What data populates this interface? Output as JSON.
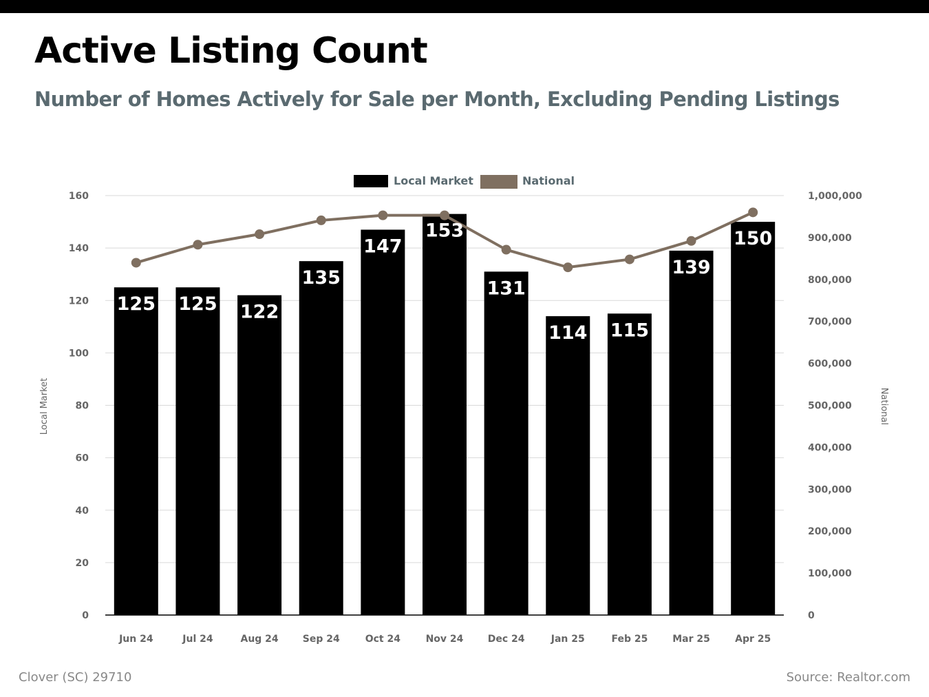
{
  "title": "Active Listing Count",
  "subtitle": "Number of Homes Actively for Sale per Month, Excluding Pending Listings",
  "footer": {
    "location": "Clover (SC) 29710",
    "source": "Source: Realtor.com"
  },
  "colors": {
    "bar": "#000000",
    "line": "#7f6f60",
    "subtitle": "#5a6a70",
    "grid": "#d9d9d9",
    "axis_text": "#666666"
  },
  "chart_data": {
    "type": "bar",
    "categories": [
      "Jun 24",
      "Jul 24",
      "Aug 24",
      "Sep 24",
      "Oct 24",
      "Nov 24",
      "Dec 24",
      "Jan 25",
      "Feb 25",
      "Mar 25",
      "Apr 25"
    ],
    "series": [
      {
        "name": "Local Market",
        "type": "bar",
        "axis": "left",
        "values": [
          125,
          125,
          122,
          135,
          147,
          153,
          131,
          114,
          115,
          139,
          150
        ]
      },
      {
        "name": "National",
        "type": "line",
        "axis": "right",
        "values": [
          840000,
          883000,
          908000,
          941000,
          953000,
          953000,
          871000,
          829000,
          848000,
          892000,
          960000
        ]
      }
    ],
    "y_left": {
      "label": "Local Market",
      "range": [
        0,
        160
      ],
      "ticks": [
        "0",
        "20",
        "40",
        "60",
        "80",
        "100",
        "120",
        "140",
        "160"
      ]
    },
    "y_right": {
      "label": "National",
      "range": [
        0,
        1000000
      ],
      "ticks": [
        "0",
        "100,000",
        "200,000",
        "300,000",
        "400,000",
        "500,000",
        "600,000",
        "700,000",
        "800,000",
        "900,000",
        "1,000,000"
      ]
    },
    "legend_position": "top-center",
    "grid": true
  }
}
